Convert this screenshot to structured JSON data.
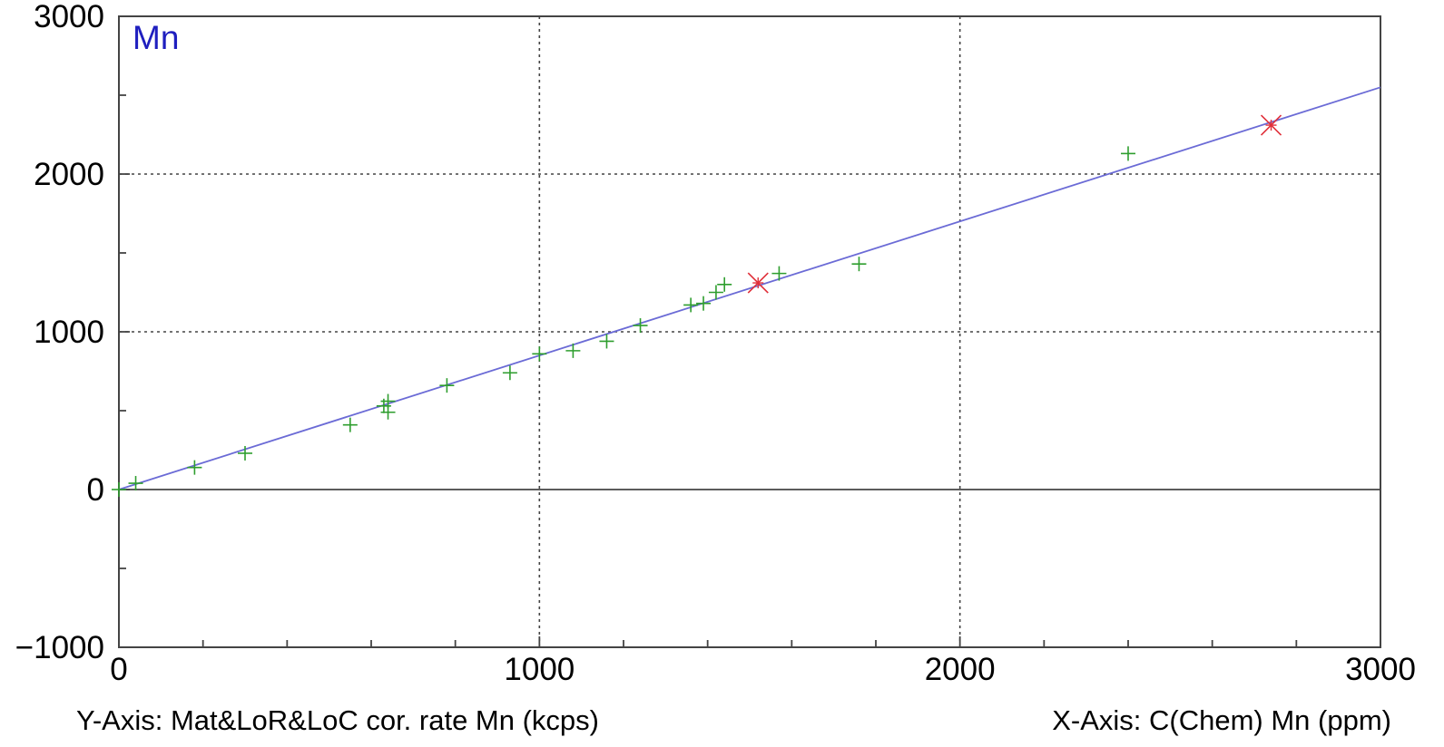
{
  "chart_data": {
    "type": "scatter",
    "title": "Mn",
    "xlabel": "X-Axis: C(Chem) Mn (ppm)",
    "ylabel": "Y-Axis: Mat&LoR&LoC cor. rate Mn (kcps)",
    "xlim": [
      0,
      3000
    ],
    "ylim": [
      -1000,
      3000
    ],
    "x_ticks": [
      0,
      1000,
      2000,
      3000
    ],
    "y_ticks": [
      -1000,
      0,
      1000,
      2000,
      3000
    ],
    "x_tick_labels": [
      "0",
      "1000",
      "2000",
      "3000"
    ],
    "y_tick_labels": [
      "−1000",
      "0",
      "1000",
      "2000",
      "3000"
    ],
    "grid": true,
    "colors": {
      "title": "#1f1fbf",
      "fit_line": "#6b6bd6",
      "points": "#2e9e2e",
      "outliers": "#e0303a",
      "grid": "#444444",
      "axes": "#444444"
    },
    "fit_line": {
      "x": [
        0,
        3000
      ],
      "y": [
        0,
        2550
      ]
    },
    "series": [
      {
        "marker": "plus",
        "points": [
          [
            0,
            0
          ],
          [
            40,
            40
          ],
          [
            180,
            140
          ],
          [
            300,
            230
          ],
          [
            550,
            410
          ],
          [
            630,
            530
          ],
          [
            640,
            560
          ],
          [
            640,
            490
          ],
          [
            780,
            660
          ],
          [
            930,
            740
          ],
          [
            1000,
            860
          ],
          [
            1080,
            880
          ],
          [
            1160,
            940
          ],
          [
            1240,
            1040
          ],
          [
            1360,
            1170
          ],
          [
            1390,
            1180
          ],
          [
            1420,
            1250
          ],
          [
            1440,
            1300
          ],
          [
            1570,
            1370
          ],
          [
            1760,
            1430
          ],
          [
            2400,
            2130
          ]
        ]
      },
      {
        "marker": "x",
        "points": [
          [
            1520,
            1310
          ],
          [
            2740,
            2310
          ]
        ]
      }
    ]
  }
}
